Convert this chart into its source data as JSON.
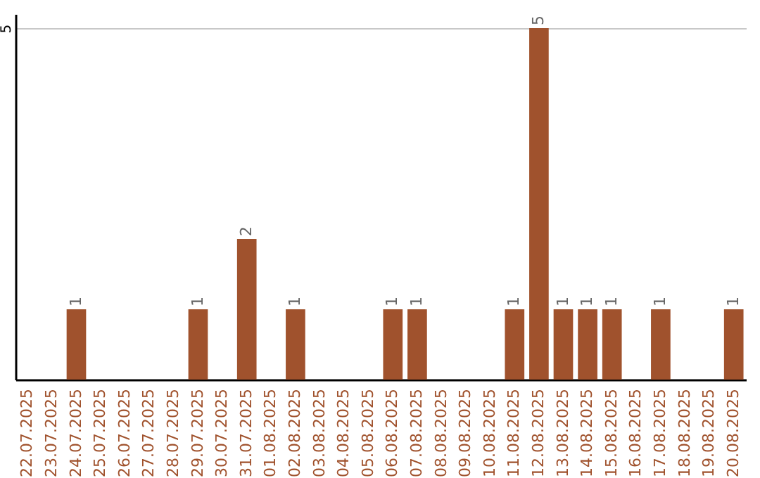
{
  "chart_data": {
    "type": "bar",
    "categories": [
      "22.07.2025",
      "23.07.2025",
      "24.07.2025",
      "25.07.2025",
      "26.07.2025",
      "27.07.2025",
      "28.07.2025",
      "29.07.2025",
      "30.07.2025",
      "31.07.2025",
      "01.08.2025",
      "02.08.2025",
      "03.08.2025",
      "04.08.2025",
      "05.08.2025",
      "06.08.2025",
      "07.08.2025",
      "08.08.2025",
      "09.08.2025",
      "10.08.2025",
      "11.08.2025",
      "12.08.2025",
      "13.08.2025",
      "14.08.2025",
      "15.08.2025",
      "16.08.2025",
      "17.08.2025",
      "18.08.2025",
      "19.08.2025",
      "20.08.2025"
    ],
    "values": [
      0,
      0,
      1,
      0,
      0,
      0,
      0,
      1,
      0,
      2,
      0,
      1,
      0,
      0,
      0,
      1,
      1,
      0,
      0,
      0,
      1,
      5,
      1,
      1,
      1,
      0,
      1,
      0,
      0,
      1
    ],
    "value_labels": [
      null,
      null,
      "1",
      null,
      null,
      null,
      null,
      "1",
      null,
      "2",
      null,
      "1",
      null,
      null,
      null,
      "1",
      "1",
      null,
      null,
      null,
      "1",
      "5",
      "1",
      "1",
      "1",
      null,
      "1",
      null,
      null,
      "1"
    ],
    "color": "#a0522d",
    "ylim": [
      0,
      5.2
    ],
    "yticks": [
      5
    ],
    "grid": "y"
  }
}
